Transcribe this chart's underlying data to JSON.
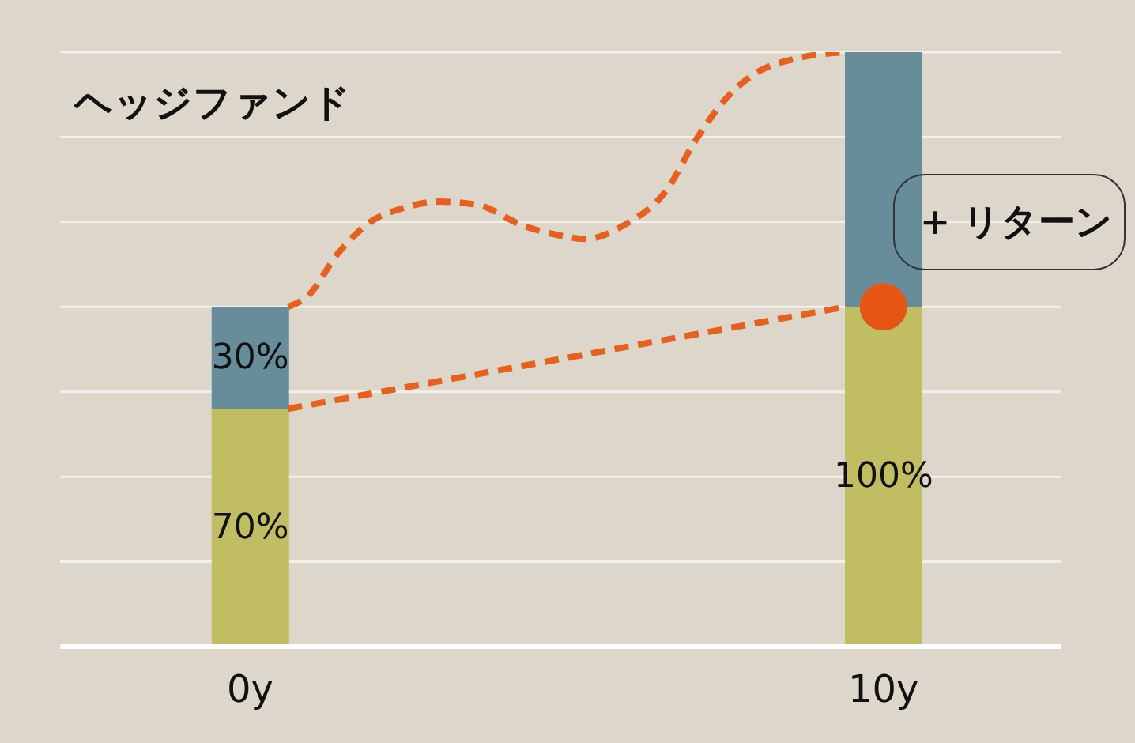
{
  "chart_data": {
    "type": "bar",
    "title": "ヘッジファンド",
    "x": [
      0,
      10
    ],
    "xlim": [
      -3,
      12.8
    ],
    "xticks": [
      {
        "value": 0,
        "label": "0y"
      },
      {
        "value": 10,
        "label": "10y"
      }
    ],
    "ylim": [
      0,
      175
    ],
    "yticks": [
      {
        "value": 0,
        "label": null
      },
      {
        "value": 25,
        "label": null
      },
      {
        "value": 50,
        "label": null
      },
      {
        "value": 75,
        "label": null
      },
      {
        "value": 100,
        "label": null
      },
      {
        "value": 125,
        "label": null
      },
      {
        "value": 150,
        "label": null
      },
      {
        "value": 175,
        "label": null
      }
    ],
    "tick_labels": "x",
    "grid": "y",
    "stacked": true,
    "series": [
      {
        "color": "#c1bd62",
        "values": [
          70,
          100
        ],
        "value_labels": [
          "70%",
          "100%"
        ]
      },
      {
        "color": "#678d9a",
        "values": [
          30,
          75
        ],
        "value_labels": [
          "30%",
          null
        ]
      },
      {
        "type": "line",
        "color": "#e8601e",
        "line_style": "dashed",
        "marker": "none",
        "x": [
          0.6,
          0.9,
          1.4,
          1.9,
          2.4,
          3.0,
          3.6,
          4.3,
          4.9,
          5.3,
          5.9,
          6.6,
          7.0,
          7.5,
          8.0,
          8.6,
          9.4
        ],
        "values": [
          100,
          103,
          116,
          125,
          129,
          131,
          130,
          124,
          121,
          120,
          124,
          135,
          148,
          161,
          169,
          173,
          175
        ]
      },
      {
        "type": "line",
        "color": "#e8601e",
        "line_style": "dashed",
        "marker": "none",
        "x": [
          0.6,
          9.4
        ],
        "values": [
          70,
          100
        ]
      },
      {
        "type": "scatter",
        "color": "#e65513",
        "marker": "circle",
        "x": [
          10
        ],
        "values": [
          100
        ]
      }
    ],
    "annotations": [
      "+ リターン"
    ]
  }
}
